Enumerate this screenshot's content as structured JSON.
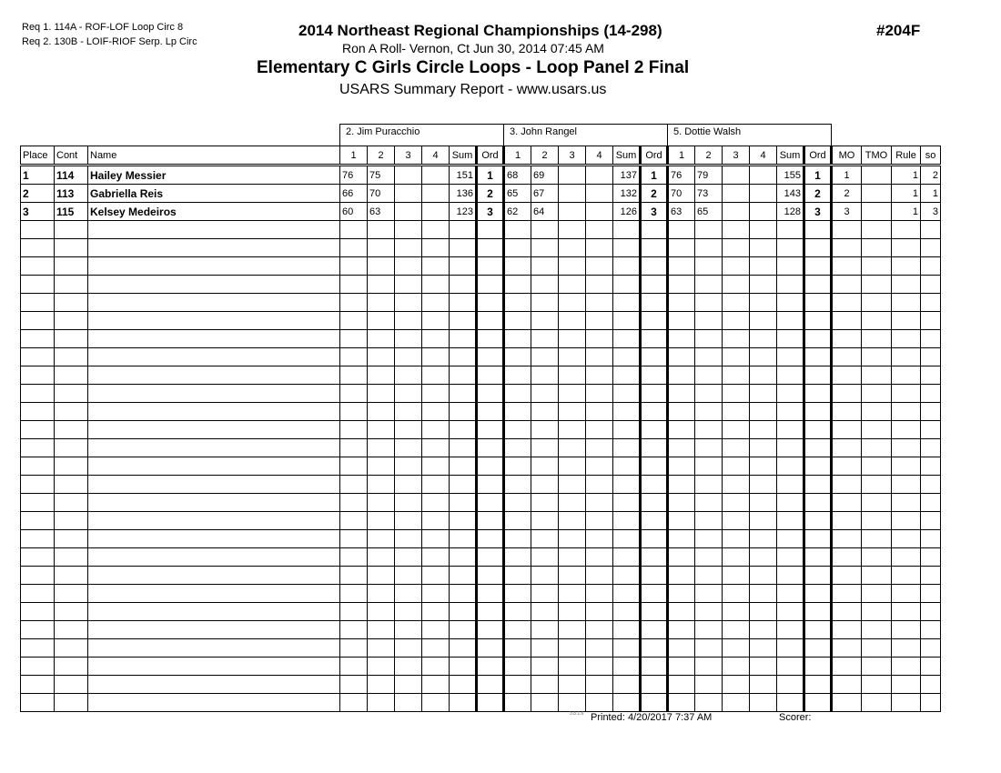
{
  "requirements": [
    "Req  1.  114A - ROF-LOF Loop Circ 8",
    "Req  2.  130B - LOIF-RIOF Serp. Lp Circ"
  ],
  "header": {
    "title": "2014 Northeast Regional Championships (14-298)",
    "location": "Ron A Roll- Vernon, Ct  Jun 30, 2014  07:45 AM",
    "event": "Elementary C Girls Circle Loops - Loop Panel 2 Final",
    "report": "USARS Summary Report - www.usars.us",
    "event_number": "#204F"
  },
  "judges": [
    "2.  Jim Puracchio",
    "3.  John Rangel",
    "5.  Dottie Walsh"
  ],
  "columns": {
    "place": "Place",
    "cont": "Cont",
    "name": "Name",
    "scores": [
      "1",
      "2",
      "3",
      "4",
      "Sum",
      "Ord"
    ],
    "mo": "MO",
    "tmo": "TMO",
    "rule": "Rule",
    "so": "so"
  },
  "rows": [
    {
      "place": "1",
      "cont": "114",
      "name": "Hailey Messier",
      "judges": [
        [
          "76",
          "75",
          "",
          "",
          "151",
          "1"
        ],
        [
          "68",
          "69",
          "",
          "",
          "137",
          "1"
        ],
        [
          "76",
          "79",
          "",
          "",
          "155",
          "1"
        ]
      ],
      "mo": "1",
      "tmo": "",
      "rule": "1",
      "so": "2"
    },
    {
      "place": "2",
      "cont": "113",
      "name": "Gabriella Reis",
      "judges": [
        [
          "66",
          "70",
          "",
          "",
          "136",
          "2"
        ],
        [
          "65",
          "67",
          "",
          "",
          "132",
          "2"
        ],
        [
          "70",
          "73",
          "",
          "",
          "143",
          "2"
        ]
      ],
      "mo": "2",
      "tmo": "",
      "rule": "1",
      "so": "1"
    },
    {
      "place": "3",
      "cont": "115",
      "name": "Kelsey Medeiros",
      "judges": [
        [
          "60",
          "63",
          "",
          "",
          "123",
          "3"
        ],
        [
          "62",
          "64",
          "",
          "",
          "126",
          "3"
        ],
        [
          "63",
          "65",
          "",
          "",
          "128",
          "3"
        ]
      ],
      "mo": "3",
      "tmo": "",
      "rule": "1",
      "so": "3"
    }
  ],
  "footer": {
    "version": "3.8.1.6",
    "printed": "Printed:  4/20/2017  7:37 AM",
    "scorer": "Scorer:"
  }
}
